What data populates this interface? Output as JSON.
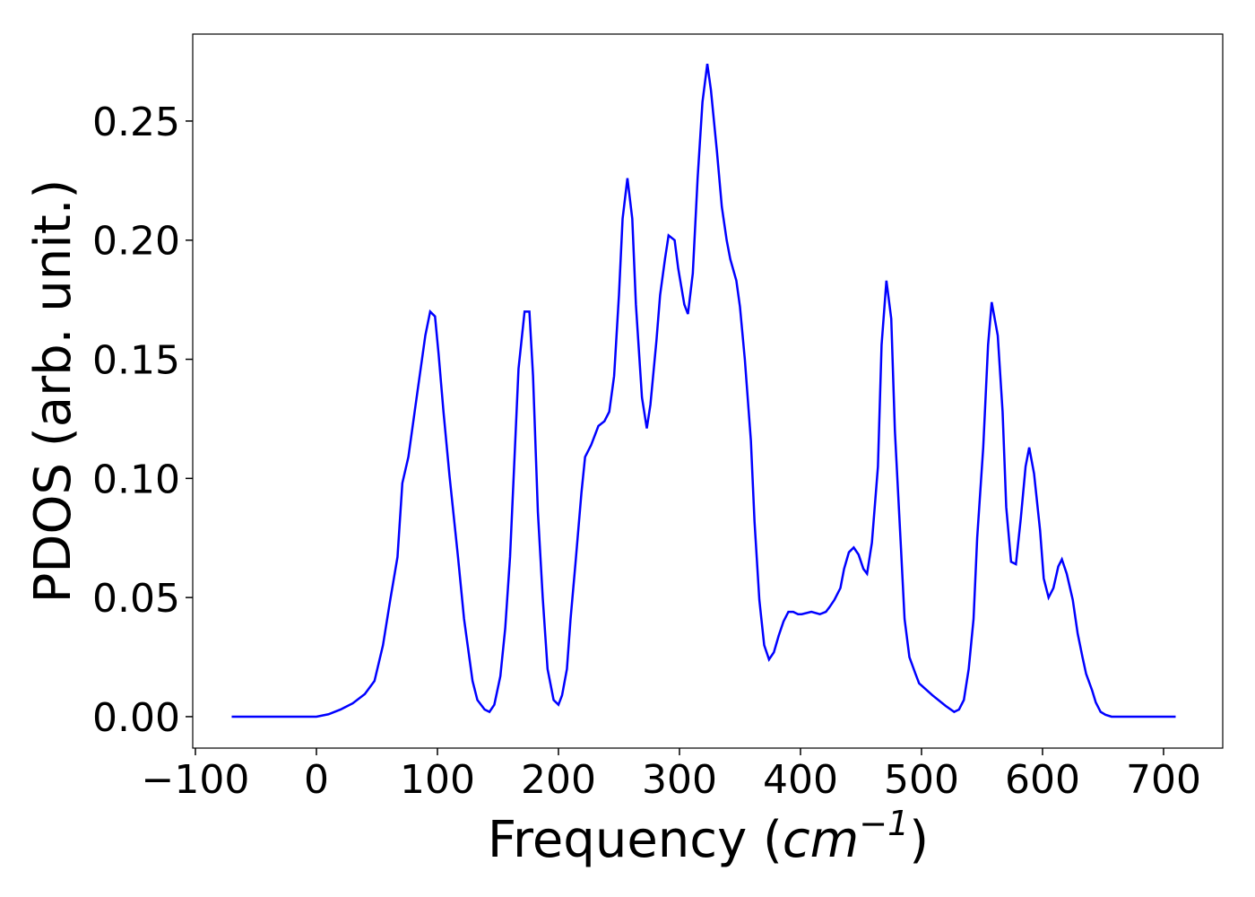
{
  "chart_data": {
    "type": "line",
    "xlabel": [
      "Frequency (",
      "cm",
      "−1",
      ")"
    ],
    "ylabel": "PDOS (arb. unit.)",
    "xlim": [
      -102.2,
      748.9
    ],
    "ylim": [
      -0.0132,
      0.2865
    ],
    "xticks": [
      {
        "value": -100,
        "label": "−100"
      },
      0,
      100,
      200,
      300,
      400,
      500,
      600,
      700
    ],
    "yticks": [
      {
        "value": 0,
        "label": "0.00"
      },
      {
        "value": 0.05,
        "label": "0.05"
      },
      {
        "value": 0.1,
        "label": "0.10"
      },
      {
        "value": 0.15,
        "label": "0.15"
      },
      {
        "value": 0.2,
        "label": "0.20"
      },
      {
        "value": 0.25,
        "label": "0.25"
      }
    ],
    "series": [
      {
        "color": "#0000ff",
        "x": [
          -70,
          0,
          10,
          20,
          30,
          40,
          48,
          55,
          61,
          67,
          71,
          76,
          82,
          90,
          94,
          98,
          101,
          105,
          110,
          117,
          122,
          129,
          133,
          139,
          143,
          147,
          152,
          156,
          160,
          167,
          172,
          176,
          179,
          183,
          187,
          191,
          196,
          200,
          203,
          207,
          210,
          214,
          219,
          222,
          227,
          233,
          238,
          242,
          246,
          250,
          253,
          257,
          261,
          264,
          269,
          273,
          276,
          281,
          284,
          288,
          291,
          296,
          299,
          304,
          307,
          311,
          315,
          319,
          323,
          326,
          331,
          335,
          339,
          342,
          347,
          350,
          354,
          359,
          362,
          366,
          370,
          374,
          378,
          382,
          386,
          390,
          394,
          398,
          401,
          409,
          416,
          421,
          424,
          428,
          433,
          436,
          440,
          444,
          448,
          452,
          455,
          459,
          464,
          467,
          471,
          475,
          478,
          483,
          486,
          490,
          495,
          498,
          509,
          520,
          527,
          531,
          535,
          539,
          543,
          546,
          551,
          555,
          558,
          563,
          567,
          570,
          574,
          578,
          582,
          586,
          589,
          593,
          598,
          601,
          605,
          609,
          613,
          616,
          620,
          625,
          629,
          633,
          636,
          641,
          644,
          648,
          652,
          657,
          710
        ],
        "values": [
          0,
          0,
          0.001,
          0.003,
          0.0056,
          0.0095,
          0.015,
          0.03,
          0.049,
          0.067,
          0.098,
          0.109,
          0.131,
          0.16,
          0.17,
          0.168,
          0.152,
          0.128,
          0.101,
          0.067,
          0.041,
          0.015,
          0.007,
          0.003,
          0.002,
          0.005,
          0.017,
          0.037,
          0.067,
          0.146,
          0.17,
          0.17,
          0.143,
          0.086,
          0.05,
          0.02,
          0.007,
          0.005,
          0.009,
          0.02,
          0.041,
          0.064,
          0.094,
          0.109,
          0.114,
          0.122,
          0.124,
          0.128,
          0.143,
          0.177,
          0.209,
          0.226,
          0.209,
          0.173,
          0.134,
          0.121,
          0.131,
          0.158,
          0.177,
          0.192,
          0.202,
          0.2,
          0.188,
          0.173,
          0.169,
          0.186,
          0.226,
          0.258,
          0.274,
          0.263,
          0.237,
          0.214,
          0.2,
          0.192,
          0.183,
          0.172,
          0.15,
          0.116,
          0.082,
          0.049,
          0.03,
          0.024,
          0.027,
          0.034,
          0.04,
          0.044,
          0.044,
          0.043,
          0.043,
          0.044,
          0.043,
          0.044,
          0.046,
          0.049,
          0.054,
          0.062,
          0.069,
          0.071,
          0.068,
          0.062,
          0.06,
          0.073,
          0.105,
          0.156,
          0.183,
          0.167,
          0.12,
          0.071,
          0.041,
          0.025,
          0.018,
          0.014,
          0.009,
          0.0045,
          0.002,
          0.003,
          0.007,
          0.02,
          0.041,
          0.075,
          0.113,
          0.156,
          0.174,
          0.16,
          0.128,
          0.088,
          0.065,
          0.064,
          0.083,
          0.105,
          0.113,
          0.102,
          0.078,
          0.058,
          0.05,
          0.054,
          0.063,
          0.066,
          0.06,
          0.049,
          0.035,
          0.025,
          0.018,
          0.011,
          0.006,
          0.002,
          0.0008,
          0,
          0
        ]
      }
    ]
  }
}
